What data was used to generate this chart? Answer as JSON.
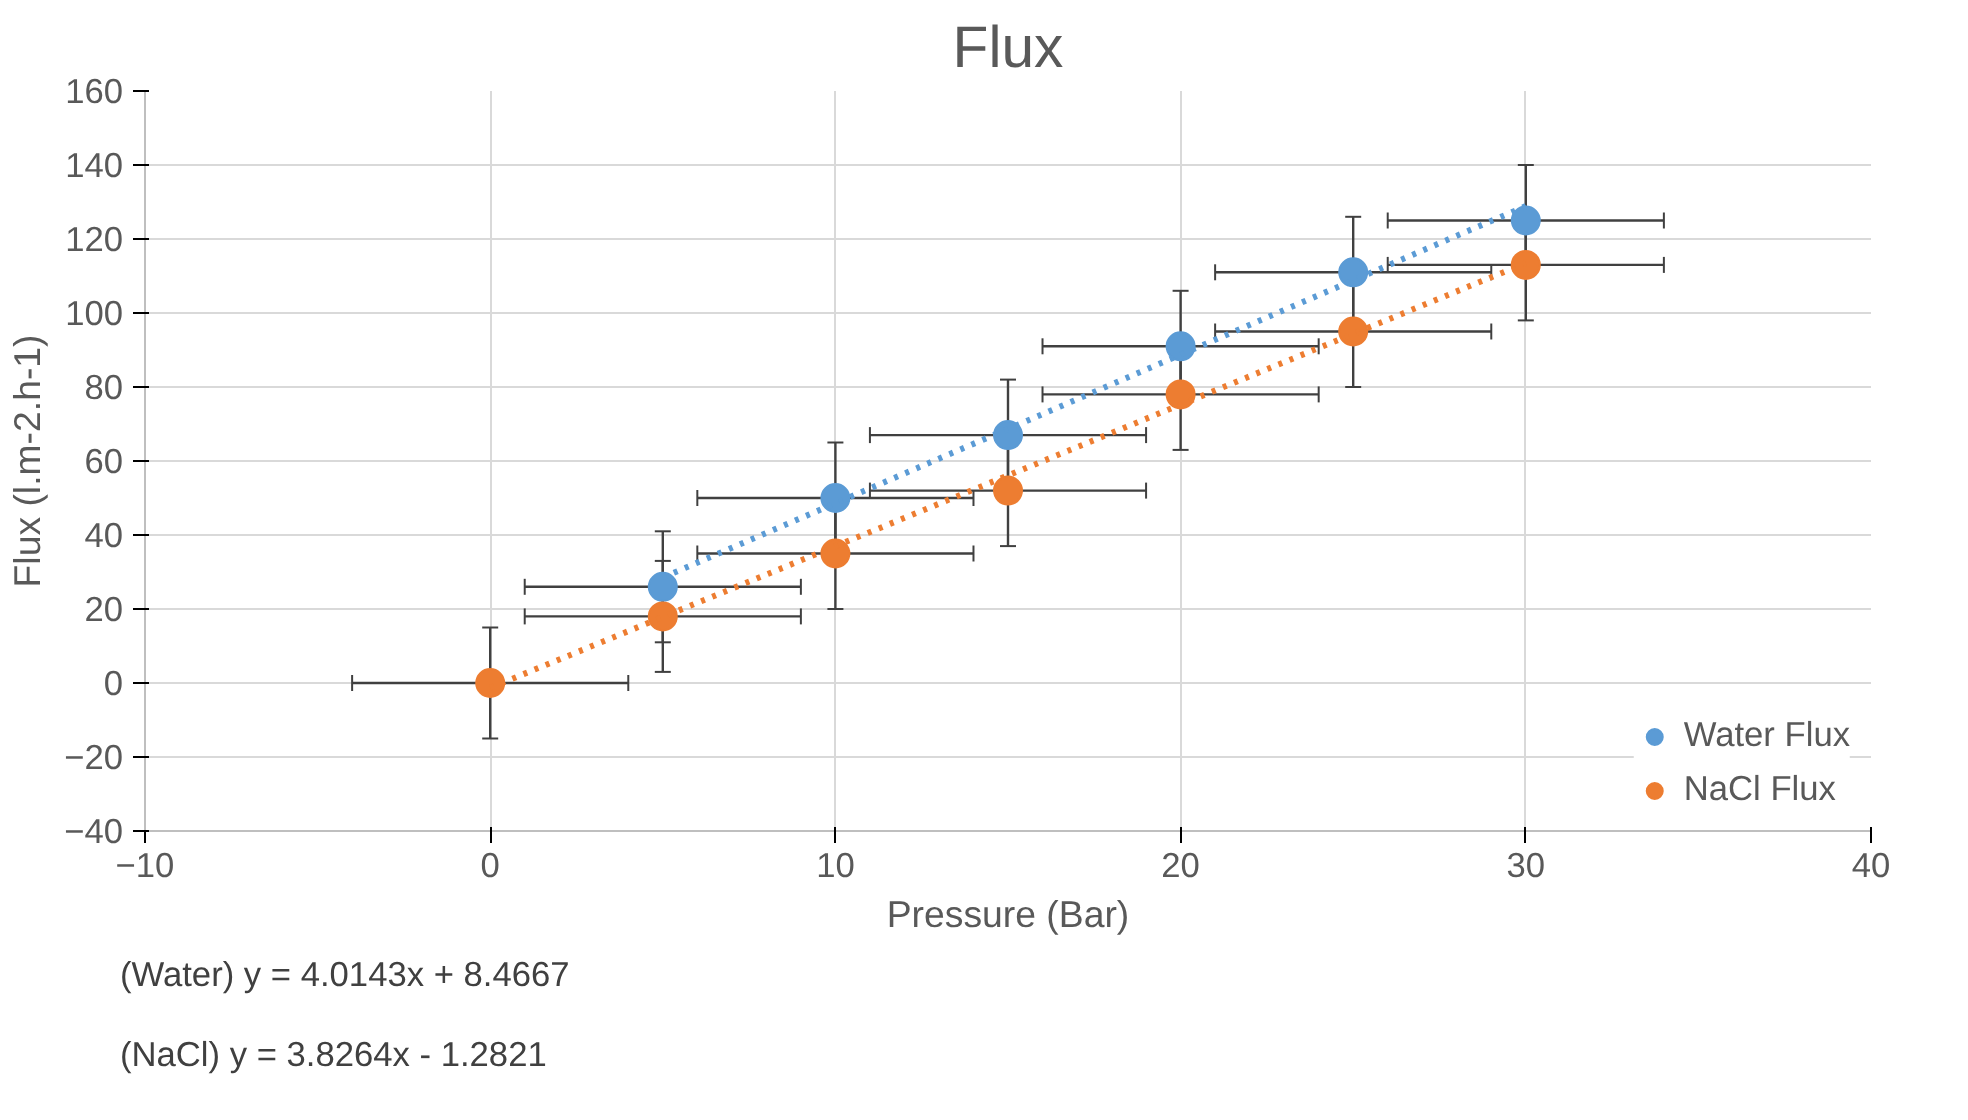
{
  "chart_data": {
    "type": "scatter",
    "title": "Flux",
    "xlabel": "Pressure (Bar)",
    "ylabel": "Flux (l.m-2.h-1)",
    "xlim": [
      -10,
      40
    ],
    "xticks": [
      -10,
      0,
      10,
      20,
      30,
      40
    ],
    "ylim": [
      -40,
      160
    ],
    "yticks": [
      -40,
      -20,
      0,
      20,
      40,
      60,
      80,
      100,
      120,
      140,
      160
    ],
    "grid": true,
    "legend": "bottom right",
    "marker": "circle",
    "series": [
      {
        "name": "Water Flux",
        "color": "#5b9bd5",
        "x": [
          5,
          10,
          15,
          20,
          25,
          30
        ],
        "values": [
          26,
          50,
          67,
          91,
          111,
          125
        ],
        "errors": [
          15,
          15,
          15,
          15,
          15,
          15
        ],
        "xerrors": [
          4,
          4,
          4,
          4,
          4,
          4
        ]
      },
      {
        "name": "NaCl Flux",
        "color": "#ed7d31",
        "x": [
          0,
          5,
          10,
          15,
          20,
          25,
          30
        ],
        "values": [
          0,
          18,
          35,
          52,
          78,
          95,
          113
        ],
        "errors": [
          15,
          15,
          15,
          15,
          15,
          15,
          15
        ],
        "xerrors": [
          4,
          4,
          4,
          4,
          4,
          4,
          4
        ]
      },
      {
        "type": "line",
        "color": "#5b9bd5",
        "line_style": "dotted",
        "marker": "none",
        "x": [
          5,
          30
        ],
        "values": [
          28.5,
          128.9
        ]
      },
      {
        "type": "line",
        "color": "#ed7d31",
        "line_style": "dotted",
        "marker": "none",
        "x": [
          0,
          30
        ],
        "values": [
          -1.3,
          113.5
        ]
      }
    ],
    "annotations": [
      "(Water) y = 4.0143x + 8.4667",
      "(NaCl) y = 3.8264x - 1.2821"
    ]
  }
}
